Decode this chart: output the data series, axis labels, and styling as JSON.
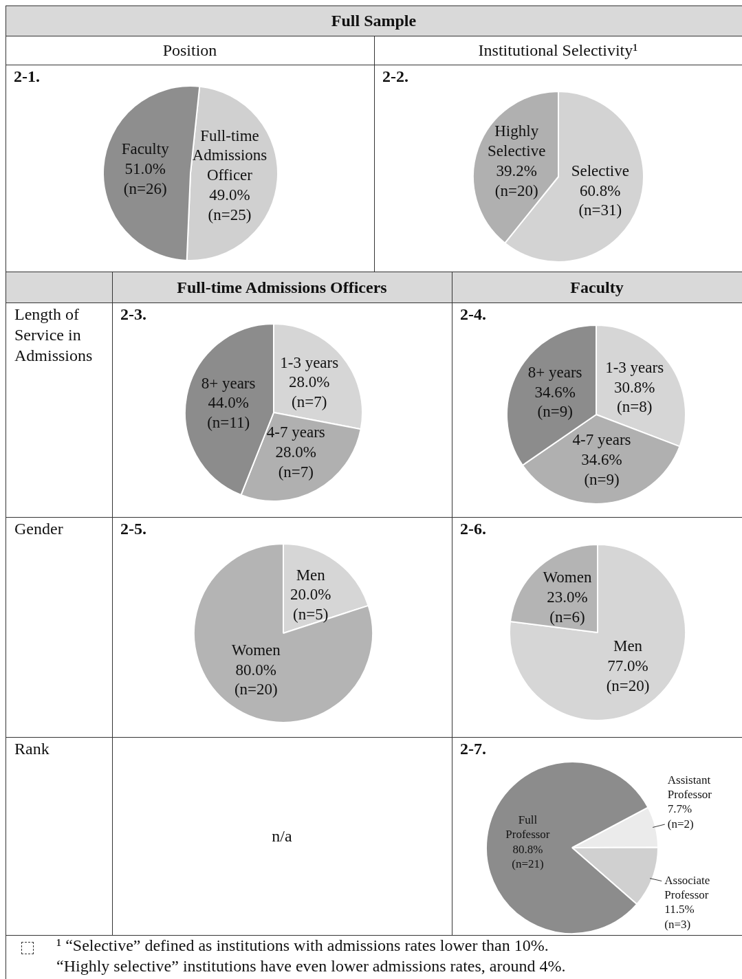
{
  "chart_data": [
    {
      "type": "pie",
      "title": "2-1.",
      "subtitle": "Position",
      "annotations": [
        "Full Sample"
      ],
      "categories": [
        "Full-time Admissions Officer",
        "Faculty"
      ],
      "values": [
        49.0,
        51.0
      ],
      "colors": [
        "#d0d0d0",
        "#8e8e8e"
      ],
      "value_labels": [
        "49.0%\n(n=25)",
        "51.0%\n(n=26)"
      ]
    },
    {
      "type": "pie",
      "title": "2-2.",
      "subtitle": "Institutional Selectivity¹",
      "categories": [
        "Selective",
        "Highly Selective"
      ],
      "values": [
        60.8,
        39.2
      ],
      "colors": [
        "#d3d3d3",
        "#b0b0b0"
      ],
      "value_labels": [
        "60.8%\n(n=31)",
        "39.2%\n(n=20)"
      ]
    },
    {
      "type": "pie",
      "title": "2-3.",
      "subtitle": "Full-time Admissions Officers",
      "ylabel": "Length of Service in Admissions",
      "categories": [
        "1-3 years",
        "4-7 years",
        "8+ years"
      ],
      "values": [
        28.0,
        28.0,
        44.0
      ],
      "colors": [
        "#d6d6d6",
        "#b0b0b0",
        "#8c8c8c"
      ],
      "value_labels": [
        "28.0%\n(n=7)",
        "28.0%\n(n=7)",
        "44.0%\n(n=11)"
      ]
    },
    {
      "type": "pie",
      "title": "2-4.",
      "subtitle": "Faculty",
      "categories": [
        "1-3 years",
        "4-7 years",
        "8+ years"
      ],
      "values": [
        30.8,
        34.6,
        34.6
      ],
      "colors": [
        "#d6d6d6",
        "#b0b0b0",
        "#8c8c8c"
      ],
      "value_labels": [
        "30.8%\n(n=8)",
        "34.6%\n(n=9)",
        "34.6%\n(n=9)"
      ]
    },
    {
      "type": "pie",
      "title": "2-5.",
      "ylabel": "Gender",
      "categories": [
        "Men",
        "Women"
      ],
      "values": [
        20.0,
        80.0
      ],
      "colors": [
        "#d6d6d6",
        "#b4b4b4"
      ],
      "value_labels": [
        "20.0%\n(n=5)",
        "80.0%\n(n=20)"
      ]
    },
    {
      "type": "pie",
      "title": "2-6.",
      "categories": [
        "Men",
        "Women"
      ],
      "values": [
        77.0,
        23.0
      ],
      "colors": [
        "#d6d6d6",
        "#b4b4b4"
      ],
      "value_labels": [
        "77.0%\n(n=20)",
        "23.0%\n(n=6)"
      ]
    },
    {
      "type": "pie",
      "title": "2-7.",
      "ylabel": "Rank",
      "annotations": [
        "n/a",
        "¹ “Selective” defined as institutions with admissions rates lower than 10%.\n“Highly selective” institutions have even lower admissions rates, around 4%."
      ],
      "categories": [
        "Assistant Professor",
        "Associate Professor",
        "Full Professor"
      ],
      "values": [
        7.7,
        11.5,
        80.8
      ],
      "colors": [
        "#ebebeb",
        "#d0d0d0",
        "#8c8c8c"
      ],
      "value_labels": [
        "7.7%\n(n=2)",
        "11.5%\n(n=3)",
        "80.8%\n(n=21)"
      ]
    }
  ]
}
